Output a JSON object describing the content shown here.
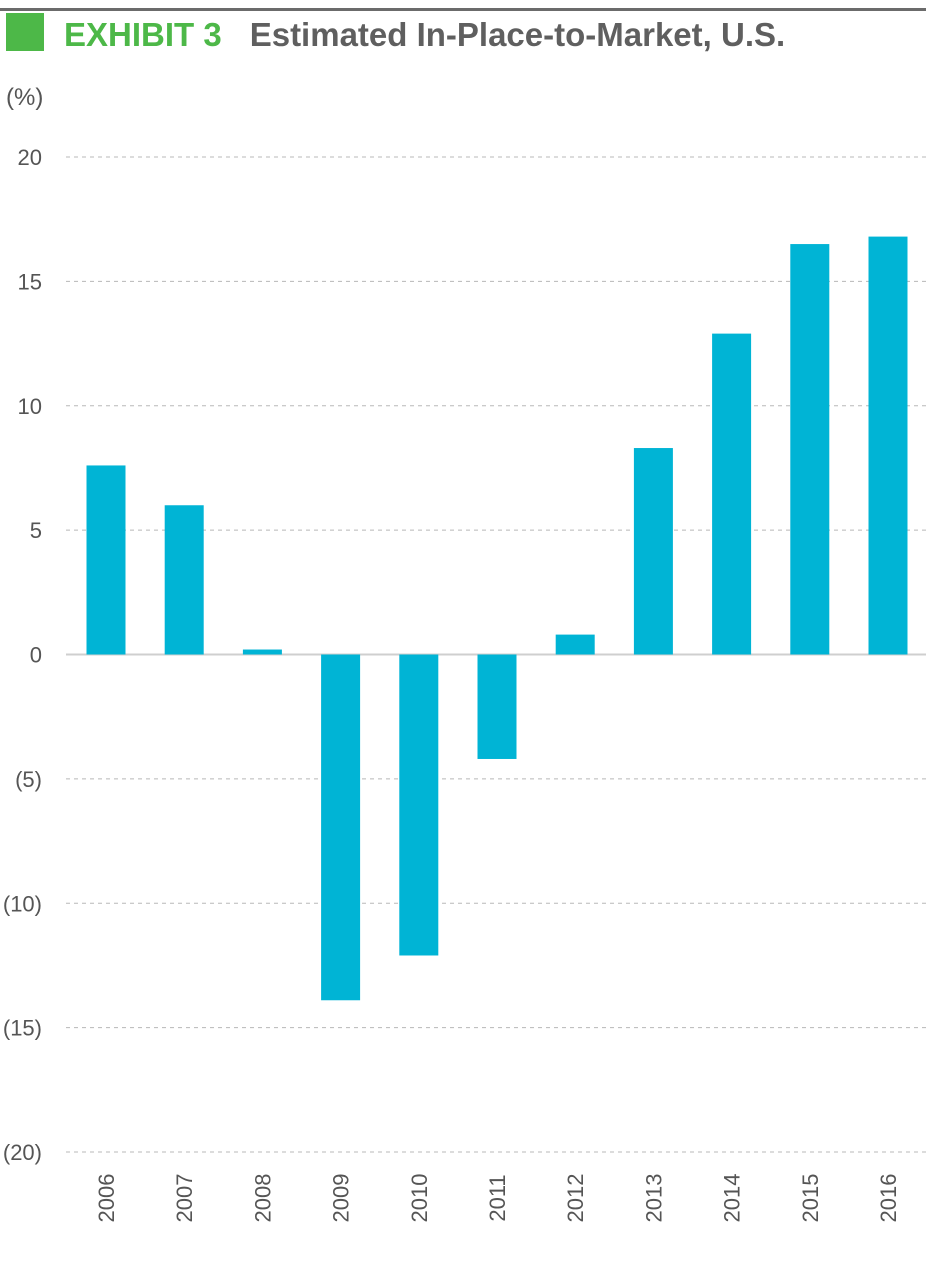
{
  "header": {
    "exhibit_label": "EXHIBIT 3",
    "title": "Estimated In-Place-to-Market, U.S."
  },
  "chart_data": {
    "type": "bar",
    "title": "Estimated In-Place-to-Market, U.S.",
    "unit_label": "(%)",
    "categories": [
      "2006",
      "2007",
      "2008",
      "2009",
      "2010",
      "2011",
      "2012",
      "2013",
      "2014",
      "2015",
      "2016"
    ],
    "values": [
      7.6,
      6.0,
      0.2,
      -13.9,
      -12.1,
      -4.2,
      0.8,
      8.3,
      12.9,
      16.5,
      16.8
    ],
    "ylim": [
      -20,
      20
    ],
    "yticks": [
      20,
      15,
      10,
      5,
      0,
      -5,
      -10,
      -15,
      -20
    ],
    "ytick_labels": [
      "20",
      "15",
      "10",
      "5",
      "0",
      "(5)",
      "(10)",
      "(15)",
      "(20)"
    ],
    "grid": true,
    "legend": "none",
    "bar_color": "#00b4d5",
    "grid_color": "#b8b8b8",
    "accent_color": "#4db848"
  }
}
